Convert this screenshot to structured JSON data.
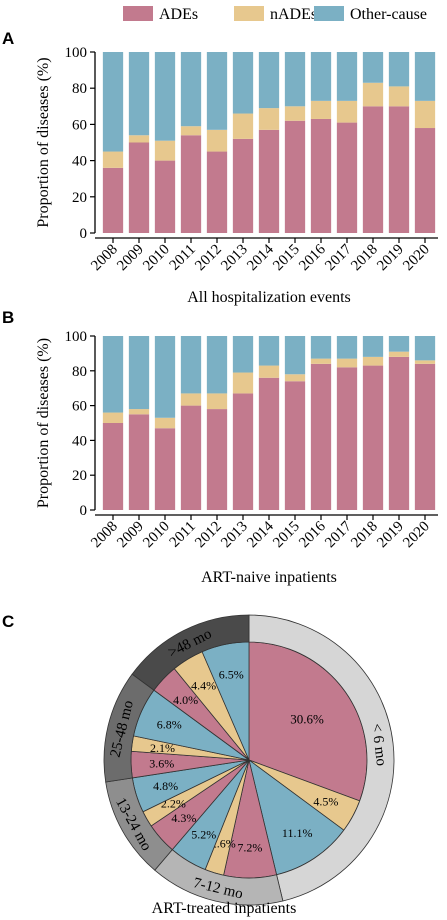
{
  "legend": [
    {
      "label": "ADEs",
      "color": "#C27A8E"
    },
    {
      "label": "nADEs",
      "color": "#E7C88E"
    },
    {
      "label": "Other-cause",
      "color": "#7BB0C4"
    }
  ],
  "chart_data": [
    {
      "panel": "A",
      "type": "bar",
      "stacked": true,
      "xlabel": "All hospitalization events",
      "ylabel": "Proportion of diseases (%)",
      "ylim": [
        0,
        100
      ],
      "yticks": [
        "0",
        "20",
        "40",
        "60",
        "80",
        "100"
      ],
      "categories": [
        "2008",
        "2009",
        "2010",
        "2011",
        "2012",
        "2013",
        "2014",
        "2015",
        "2016",
        "2017",
        "2018",
        "2019",
        "2020"
      ],
      "series": [
        {
          "name": "ADEs",
          "color": "#C27A8E",
          "values": [
            36,
            50,
            40,
            54,
            45,
            52,
            57,
            62,
            63,
            61,
            70,
            70,
            58
          ]
        },
        {
          "name": "nADEs",
          "color": "#E7C88E",
          "values": [
            9,
            4,
            11,
            5,
            12,
            14,
            12,
            8,
            10,
            12,
            13,
            11,
            15
          ]
        },
        {
          "name": "Other-cause",
          "color": "#7BB0C4",
          "values": [
            55,
            46,
            49,
            41,
            43,
            34,
            31,
            30,
            27,
            27,
            17,
            19,
            27
          ]
        }
      ]
    },
    {
      "panel": "B",
      "type": "bar",
      "stacked": true,
      "xlabel": "ART-naive inpatients",
      "ylabel": "Proportion of diseases (%)",
      "ylim": [
        0,
        100
      ],
      "yticks": [
        "0",
        "20",
        "40",
        "60",
        "80",
        "100"
      ],
      "categories": [
        "2008",
        "2009",
        "2010",
        "2011",
        "2012",
        "2013",
        "2014",
        "2015",
        "2016",
        "2017",
        "2018",
        "2019",
        "2020"
      ],
      "series": [
        {
          "name": "ADEs",
          "color": "#C27A8E",
          "values": [
            50,
            55,
            47,
            60,
            58,
            67,
            76,
            74,
            84,
            82,
            83,
            88,
            84
          ]
        },
        {
          "name": "nADEs",
          "color": "#E7C88E",
          "values": [
            6,
            3,
            6,
            7,
            9,
            12,
            7,
            4,
            3,
            5,
            5,
            3,
            2
          ]
        },
        {
          "name": "Other-cause",
          "color": "#7BB0C4",
          "values": [
            44,
            42,
            47,
            33,
            33,
            21,
            17,
            22,
            13,
            13,
            12,
            9,
            14
          ]
        }
      ]
    },
    {
      "panel": "C",
      "type": "pie",
      "xlabel": "ART-treated inpatients",
      "groups": [
        {
          "label": "< 6 mo",
          "ring_color": "#D6D6D6",
          "slices": [
            {
              "cause": "ADEs",
              "value": 30.6,
              "label": "30.6%"
            },
            {
              "cause": "nADEs",
              "value": 4.5,
              "label": "4.5%"
            },
            {
              "cause": "Other-cause",
              "value": 11.1,
              "label": "11.1%"
            }
          ]
        },
        {
          "label": "7-12 mo",
          "ring_color": "#B5B5B5",
          "slices": [
            {
              "cause": "ADEs",
              "value": 7.2,
              "label": "7.2%"
            },
            {
              "cause": "nADEs",
              "value": 2.6,
              "label": "2.6%"
            },
            {
              "cause": "Other-cause",
              "value": 5.2,
              "label": "5.2%"
            }
          ]
        },
        {
          "label": "13-24 mo",
          "ring_color": "#8E8E8E",
          "slices": [
            {
              "cause": "ADEs",
              "value": 4.3,
              "label": "4.3%"
            },
            {
              "cause": "nADEs",
              "value": 2.2,
              "label": "2.2%"
            },
            {
              "cause": "Other-cause",
              "value": 4.8,
              "label": "4.8%"
            }
          ]
        },
        {
          "label": "25-48 mo",
          "ring_color": "#6C6C6C",
          "slices": [
            {
              "cause": "ADEs",
              "value": 3.6,
              "label": "3.6%"
            },
            {
              "cause": "nADEs",
              "value": 2.1,
              "label": "2.1%"
            },
            {
              "cause": "Other-cause",
              "value": 6.8,
              "label": "6.8%"
            }
          ]
        },
        {
          "label": ">48 mo",
          "ring_color": "#4A4A4A",
          "slices": [
            {
              "cause": "ADEs",
              "value": 4.0,
              "label": "4.0%"
            },
            {
              "cause": "nADEs",
              "value": 4.4,
              "label": "4.4%"
            },
            {
              "cause": "Other-cause",
              "value": 6.5,
              "label": "6.5%"
            }
          ]
        }
      ]
    }
  ]
}
